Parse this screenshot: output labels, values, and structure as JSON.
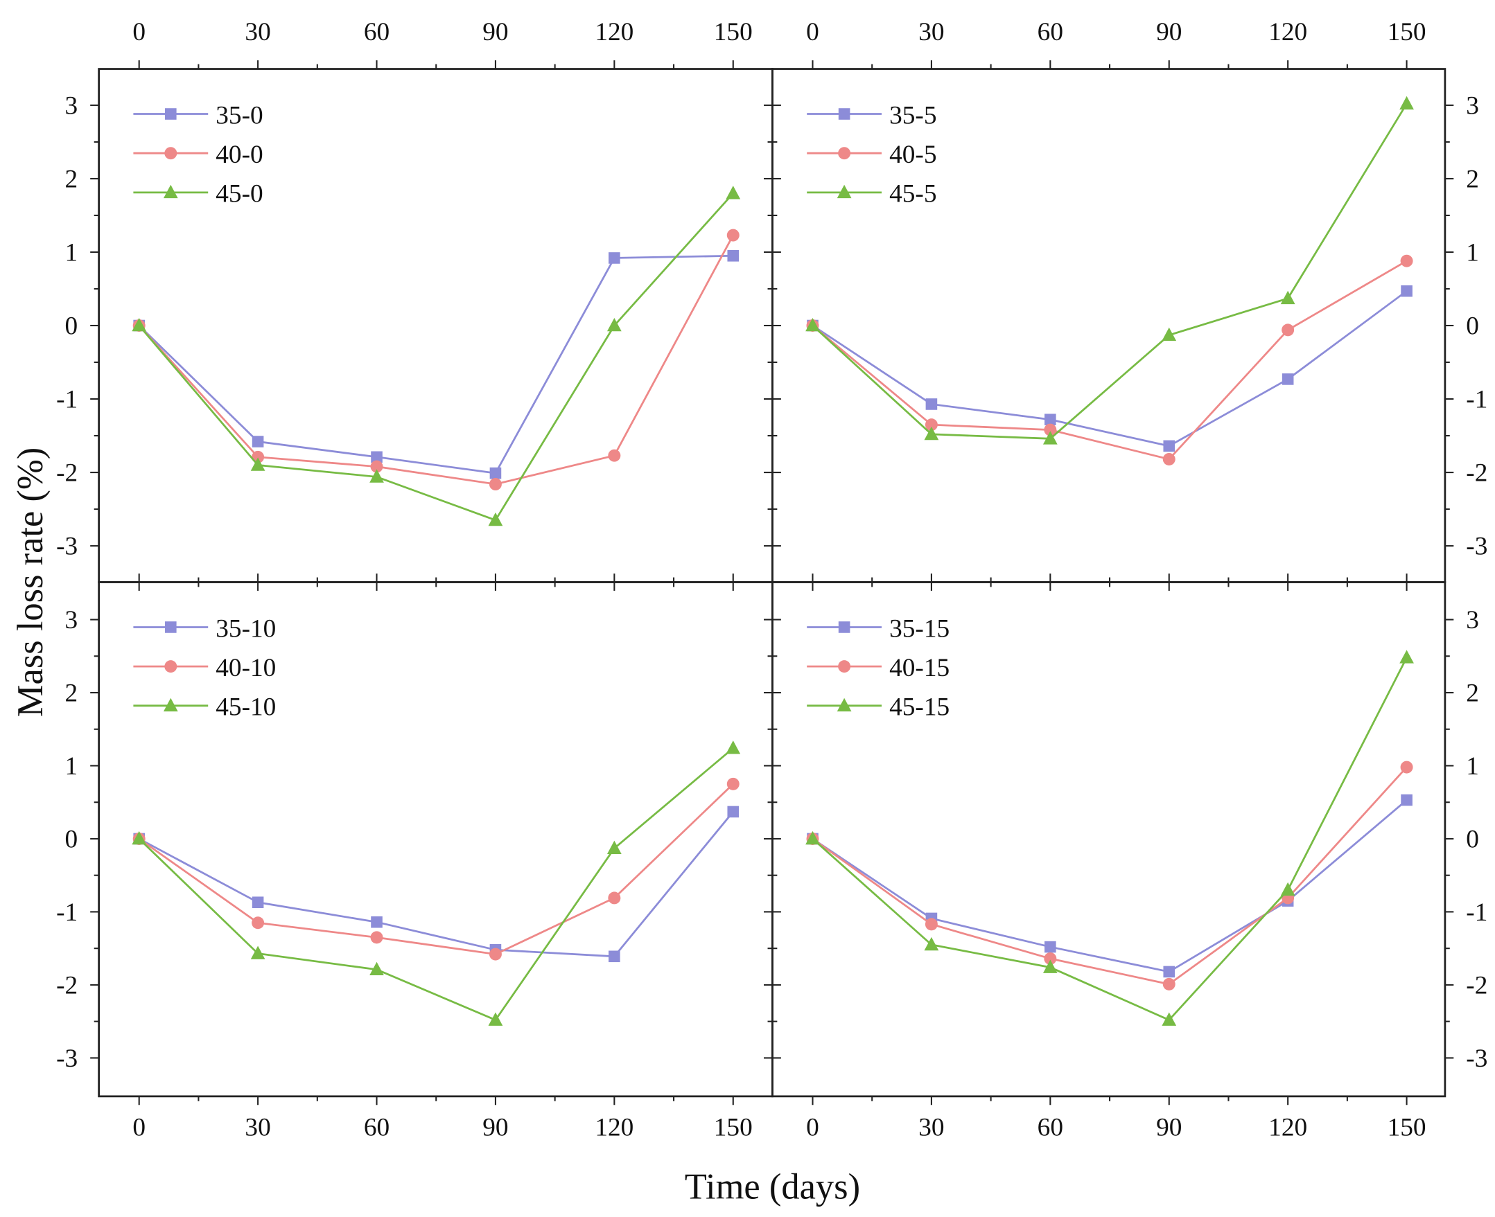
{
  "chart_data": {
    "type": "line",
    "xlabel": "Time (days)",
    "ylabel": "Mass loss rate (%)",
    "x": [
      0,
      30,
      60,
      90,
      120,
      150
    ],
    "xticks": [
      0,
      30,
      60,
      90,
      120,
      150
    ],
    "yticks": [
      3,
      2,
      1,
      0,
      -1,
      -2,
      -3
    ],
    "xlim": [
      -10,
      160
    ],
    "ylim": [
      -3.5,
      3.5
    ],
    "grid": false,
    "colors": [
      "#8c8cd8",
      "#ee8888",
      "#77bb44"
    ],
    "markers": [
      "square",
      "circle",
      "triangle"
    ],
    "legend_position": "top-left",
    "panels": [
      {
        "series": [
          {
            "name": "35-0",
            "values": [
              0,
              -1.58,
              -1.79,
              -2.01,
              0.92,
              0.95
            ]
          },
          {
            "name": "40-0",
            "values": [
              0,
              -1.79,
              -1.92,
              -2.16,
              -1.77,
              1.23
            ]
          },
          {
            "name": "45-0",
            "values": [
              0,
              -1.9,
              -2.06,
              -2.65,
              0.0,
              1.8
            ]
          }
        ]
      },
      {
        "series": [
          {
            "name": "35-5",
            "values": [
              0,
              -1.07,
              -1.28,
              -1.64,
              -0.73,
              0.47
            ]
          },
          {
            "name": "40-5",
            "values": [
              0,
              -1.35,
              -1.42,
              -1.82,
              -0.06,
              0.88
            ]
          },
          {
            "name": "45-5",
            "values": [
              0,
              -1.48,
              -1.54,
              -0.13,
              0.37,
              3.02
            ]
          }
        ]
      },
      {
        "series": [
          {
            "name": "35-10",
            "values": [
              0,
              -0.87,
              -1.14,
              -1.52,
              -1.61,
              0.37
            ]
          },
          {
            "name": "40-10",
            "values": [
              0,
              -1.15,
              -1.35,
              -1.58,
              -0.81,
              0.75
            ]
          },
          {
            "name": "45-10",
            "values": [
              0,
              -1.57,
              -1.79,
              -2.48,
              -0.13,
              1.24
            ]
          }
        ]
      },
      {
        "series": [
          {
            "name": "35-15",
            "values": [
              0,
              -1.09,
              -1.48,
              -1.82,
              -0.85,
              0.53
            ]
          },
          {
            "name": "40-15",
            "values": [
              0,
              -1.17,
              -1.64,
              -1.99,
              -0.81,
              0.98
            ]
          },
          {
            "name": "45-15",
            "values": [
              0,
              -1.45,
              -1.76,
              -2.48,
              -0.7,
              2.48
            ]
          }
        ]
      }
    ]
  }
}
